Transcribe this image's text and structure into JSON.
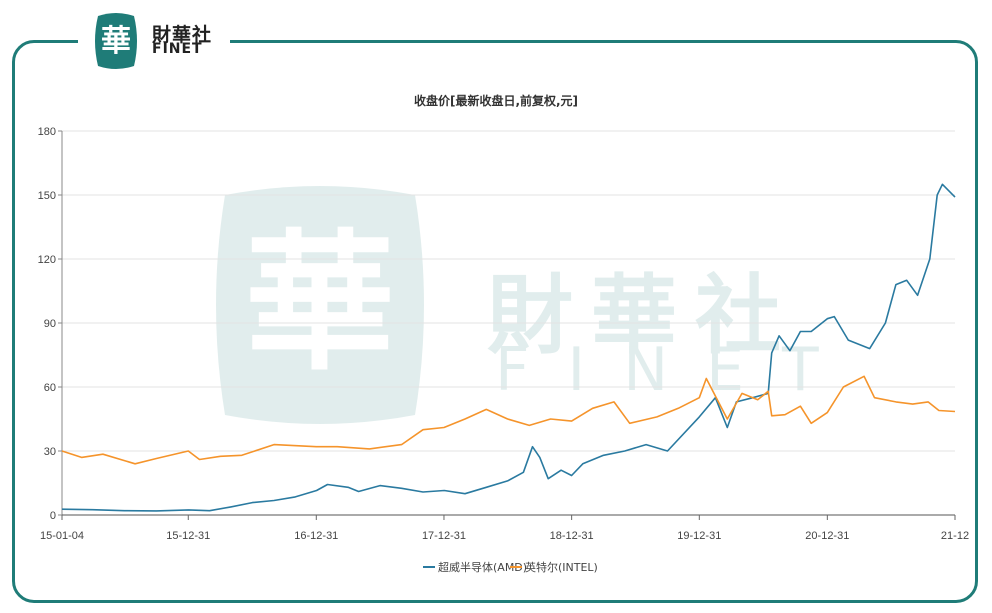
{
  "brand": {
    "cn": "財華社",
    "en": "FINET",
    "seal_glyph": "華"
  },
  "colors": {
    "frame": "#1f7c78",
    "amd": "#2a7aa0",
    "intel": "#f5942b",
    "grid": "#e3e3e3"
  },
  "chart_data": {
    "type": "line",
    "title": "收盘价[最新收盘日,前复权,元]",
    "ylim": [
      0,
      180
    ],
    "yticks": [
      0,
      30,
      60,
      90,
      120,
      150,
      180
    ],
    "xlim": [
      "2015-01-04",
      "2021-12-31"
    ],
    "xticks": [
      {
        "label": "15-01-04",
        "date": "2015-01-04"
      },
      {
        "label": "15-12-31",
        "date": "2015-12-31"
      },
      {
        "label": "16-12-31",
        "date": "2016-12-31"
      },
      {
        "label": "17-12-31",
        "date": "2017-12-31"
      },
      {
        "label": "18-12-31",
        "date": "2018-12-31"
      },
      {
        "label": "19-12-31",
        "date": "2019-12-31"
      },
      {
        "label": "20-12-31",
        "date": "2020-12-31"
      },
      {
        "label": "21-12",
        "date": "2021-12-31"
      }
    ],
    "grid": true,
    "legend": "bottom-center",
    "series": [
      {
        "name": "超威半导体(AMD)",
        "points": [
          [
            "2015-01-04",
            2.7
          ],
          [
            "2015-04-01",
            2.5
          ],
          [
            "2015-07-01",
            2.0
          ],
          [
            "2015-10-01",
            1.9
          ],
          [
            "2016-01-01",
            2.4
          ],
          [
            "2016-03-01",
            2.0
          ],
          [
            "2016-05-01",
            3.8
          ],
          [
            "2016-07-01",
            5.8
          ],
          [
            "2016-09-01",
            6.8
          ],
          [
            "2016-11-01",
            8.5
          ],
          [
            "2017-01-01",
            11.5
          ],
          [
            "2017-02-01",
            14.3
          ],
          [
            "2017-04-01",
            13.0
          ],
          [
            "2017-05-01",
            11.0
          ],
          [
            "2017-07-01",
            13.8
          ],
          [
            "2017-09-01",
            12.5
          ],
          [
            "2017-11-01",
            10.8
          ],
          [
            "2018-01-01",
            11.5
          ],
          [
            "2018-03-01",
            10.0
          ],
          [
            "2018-05-01",
            13.0
          ],
          [
            "2018-07-01",
            16.0
          ],
          [
            "2018-08-15",
            20.0
          ],
          [
            "2018-09-10",
            32.0
          ],
          [
            "2018-10-01",
            27.0
          ],
          [
            "2018-10-25",
            17.0
          ],
          [
            "2018-12-01",
            21.0
          ],
          [
            "2018-12-31",
            18.5
          ],
          [
            "2019-02-01",
            24.0
          ],
          [
            "2019-04-01",
            28.0
          ],
          [
            "2019-06-01",
            30.0
          ],
          [
            "2019-08-01",
            33.0
          ],
          [
            "2019-10-01",
            30.0
          ],
          [
            "2019-12-31",
            46.0
          ],
          [
            "2020-02-15",
            55.0
          ],
          [
            "2020-03-20",
            41.0
          ],
          [
            "2020-04-15",
            53.0
          ],
          [
            "2020-06-01",
            55.0
          ],
          [
            "2020-07-15",
            57.0
          ],
          [
            "2020-07-25",
            76.0
          ],
          [
            "2020-08-15",
            84.0
          ],
          [
            "2020-09-15",
            77.0
          ],
          [
            "2020-10-15",
            86.0
          ],
          [
            "2020-11-15",
            86.0
          ],
          [
            "2020-12-31",
            92.0
          ],
          [
            "2021-01-20",
            93.0
          ],
          [
            "2021-03-01",
            82.0
          ],
          [
            "2021-05-01",
            78.0
          ],
          [
            "2021-06-15",
            90.0
          ],
          [
            "2021-07-15",
            108.0
          ],
          [
            "2021-08-15",
            110.0
          ],
          [
            "2021-09-15",
            103.0
          ],
          [
            "2021-10-20",
            120.0
          ],
          [
            "2021-11-10",
            150.0
          ],
          [
            "2021-11-25",
            155.0
          ],
          [
            "2021-12-31",
            149.0
          ]
        ]
      },
      {
        "name": "英特尔(INTEL)",
        "points": [
          [
            "2015-01-04",
            30.0
          ],
          [
            "2015-03-01",
            27.0
          ],
          [
            "2015-05-01",
            28.5
          ],
          [
            "2015-08-01",
            24.0
          ],
          [
            "2015-10-01",
            26.5
          ],
          [
            "2015-12-31",
            30.0
          ],
          [
            "2016-02-01",
            26.0
          ],
          [
            "2016-04-01",
            27.5
          ],
          [
            "2016-06-01",
            28.0
          ],
          [
            "2016-09-01",
            33.0
          ],
          [
            "2016-12-31",
            32.0
          ],
          [
            "2017-03-01",
            32.0
          ],
          [
            "2017-06-01",
            31.0
          ],
          [
            "2017-09-01",
            33.0
          ],
          [
            "2017-11-01",
            40.0
          ],
          [
            "2017-12-31",
            41.0
          ],
          [
            "2018-03-01",
            45.0
          ],
          [
            "2018-05-01",
            49.5
          ],
          [
            "2018-07-01",
            45.0
          ],
          [
            "2018-09-01",
            42.0
          ],
          [
            "2018-11-01",
            45.0
          ],
          [
            "2018-12-31",
            44.0
          ],
          [
            "2019-03-01",
            50.0
          ],
          [
            "2019-05-01",
            53.0
          ],
          [
            "2019-06-15",
            43.0
          ],
          [
            "2019-09-01",
            46.0
          ],
          [
            "2019-11-01",
            50.0
          ],
          [
            "2019-12-31",
            55.0
          ],
          [
            "2020-01-20",
            64.0
          ],
          [
            "2020-03-20",
            45.0
          ],
          [
            "2020-05-01",
            57.0
          ],
          [
            "2020-06-15",
            54.0
          ],
          [
            "2020-07-15",
            58.0
          ],
          [
            "2020-07-25",
            46.5
          ],
          [
            "2020-09-01",
            47.0
          ],
          [
            "2020-10-15",
            51.0
          ],
          [
            "2020-11-15",
            43.0
          ],
          [
            "2020-12-31",
            48.0
          ],
          [
            "2021-02-15",
            60.0
          ],
          [
            "2021-04-15",
            65.0
          ],
          [
            "2021-05-15",
            55.0
          ],
          [
            "2021-07-15",
            53.0
          ],
          [
            "2021-09-01",
            52.0
          ],
          [
            "2021-10-15",
            53.0
          ],
          [
            "2021-11-15",
            49.0
          ],
          [
            "2021-12-31",
            48.5
          ]
        ]
      }
    ]
  }
}
